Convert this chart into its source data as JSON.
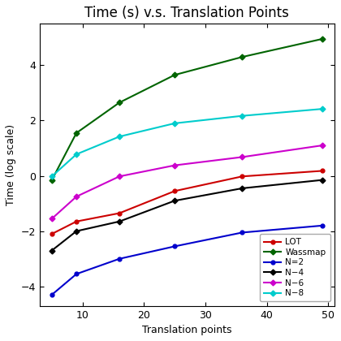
{
  "title": "Time (s) v.s. Translation Points",
  "xlabel": "Translation points",
  "ylabel": "Time (log scale)",
  "x": [
    5,
    9,
    16,
    25,
    36,
    49
  ],
  "series": {
    "LOT": {
      "y": [
        -2.1,
        -1.65,
        -1.35,
        -0.55,
        -0.02,
        0.18
      ],
      "color": "#cc0000",
      "marker": "o"
    },
    "Wassmap": {
      "y": [
        -0.15,
        1.55,
        2.65,
        3.65,
        4.3,
        4.95
      ],
      "color": "#006400",
      "marker": "D"
    },
    "N=2": {
      "y": [
        -4.3,
        -3.55,
        -3.0,
        -2.55,
        -2.05,
        -1.8
      ],
      "color": "#0000cc",
      "marker": "o"
    },
    "N=4": {
      "y": [
        -2.7,
        -2.0,
        -1.65,
        -0.9,
        -0.45,
        -0.15
      ],
      "color": "#000000",
      "marker": "D"
    },
    "N=6": {
      "y": [
        -1.55,
        -0.75,
        -0.02,
        0.38,
        0.68,
        1.1
      ],
      "color": "#cc00cc",
      "marker": "D"
    },
    "N=8": {
      "y": [
        -0.02,
        0.78,
        1.42,
        1.9,
        2.17,
        2.42
      ],
      "color": "#00cccc",
      "marker": "D"
    }
  },
  "legend_labels": [
    "LOT",
    "Wassmap",
    "N=2",
    "N=4",
    "N=6",
    "N=8"
  ],
  "legend_display": [
    "LOT",
    "Wassmap",
    "N=2",
    "N−4",
    "N−6",
    "N−8"
  ],
  "ylim": [
    -4.7,
    5.5
  ],
  "xlim": [
    3,
    51
  ],
  "xticks": [
    10,
    20,
    30,
    40,
    50
  ],
  "yticks": [
    -4,
    -2,
    0,
    2,
    4
  ],
  "figsize": [
    4.2,
    4.2
  ],
  "dpi": 100
}
